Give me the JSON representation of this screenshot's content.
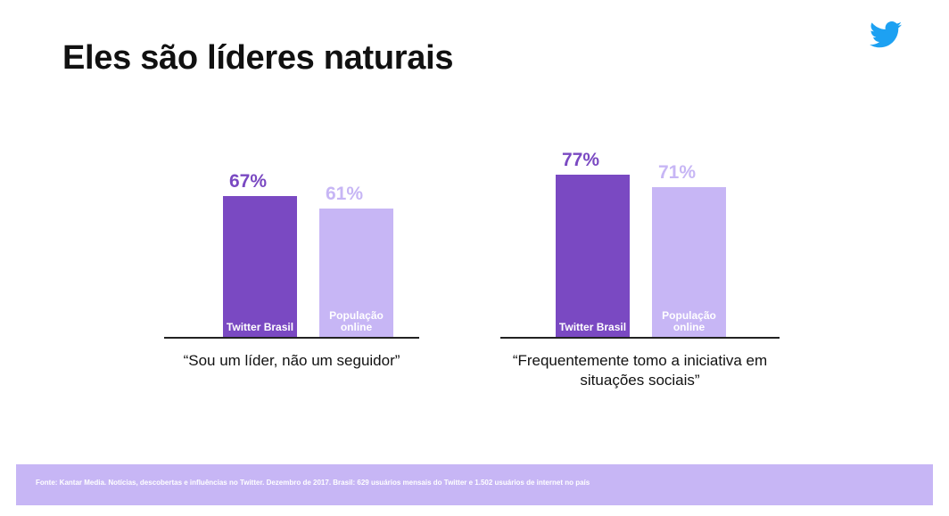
{
  "title": "Eles são líderes naturais",
  "logo": "twitter-bird-icon",
  "colors": {
    "primary": "#7a49c2",
    "secondary": "#c7b6f5",
    "axis": "#222222"
  },
  "chart_data": [
    {
      "type": "bar",
      "caption": "“Sou um líder, não um seguidor”",
      "categories": [
        "Twitter Brasil",
        "População online"
      ],
      "values": [
        67,
        61
      ],
      "value_labels": [
        "67%",
        "61%"
      ],
      "ylim": [
        0,
        100
      ]
    },
    {
      "type": "bar",
      "caption": "“Frequentemente tomo a iniciativa em situações sociais”",
      "categories": [
        "Twitter Brasil",
        "População online"
      ],
      "values": [
        77,
        71
      ],
      "value_labels": [
        "77%",
        "71%"
      ],
      "ylim": [
        0,
        100
      ]
    }
  ],
  "footer": "Fonte: Kantar Media. Notícias, descobertas e influências no Twitter. Dezembro de 2017. Brasil: 629 usuários mensais do Twitter e 1.502 usuários de internet no país"
}
